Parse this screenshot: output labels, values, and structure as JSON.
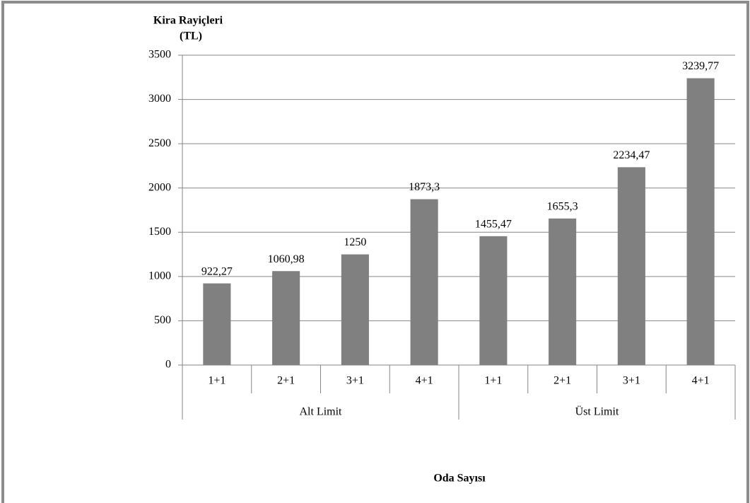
{
  "chart_data": {
    "type": "bar",
    "y_label": [
      "Kira Rayiçleri",
      "(TL)"
    ],
    "x_label": "Oda Sayısı",
    "categories": [
      "1+1",
      "2+1",
      "3+1",
      "4+1",
      "1+1",
      "2+1",
      "3+1",
      "4+1"
    ],
    "groups": [
      "Alt Limit",
      "Üst Limit"
    ],
    "values": [
      922.27,
      1060.98,
      1250,
      1873.3,
      1455.47,
      1655.3,
      2234.47,
      3239.77
    ],
    "value_labels": [
      "922,27",
      "1060,98",
      "1250",
      "1873,3",
      "1455,47",
      "1655,3",
      "2234,47",
      "3239,77"
    ],
    "color": "#808080",
    "ylim": [
      0,
      3500
    ],
    "yticks": [
      0,
      500,
      1000,
      1500,
      2000,
      2500,
      3000,
      3500
    ],
    "grid": true
  }
}
